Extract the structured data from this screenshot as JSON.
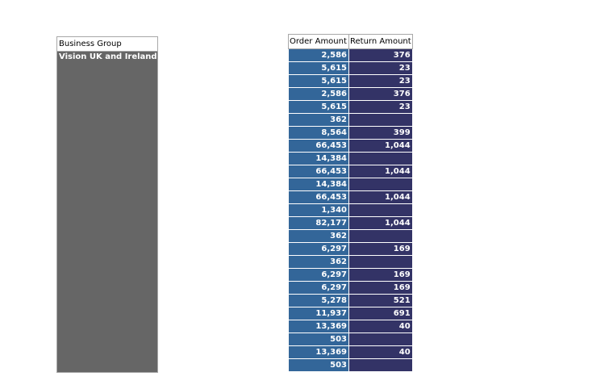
{
  "colors": {
    "group_pane": "#666666",
    "order_cell": "#336699",
    "return_cell": "#333366",
    "header_bg": "#ffffff",
    "border": "#a8a8a8"
  },
  "business_group": {
    "header": "Business Group",
    "value": "Vision UK and Ireland"
  },
  "table": {
    "headers": {
      "order_amount": "Order Amount",
      "return_amount": "Return Amount"
    },
    "rows": [
      {
        "order": "2,586",
        "return": "376"
      },
      {
        "order": "5,615",
        "return": "23"
      },
      {
        "order": "5,615",
        "return": "23"
      },
      {
        "order": "2,586",
        "return": "376"
      },
      {
        "order": "5,615",
        "return": "23"
      },
      {
        "order": "362",
        "return": ""
      },
      {
        "order": "8,564",
        "return": "399"
      },
      {
        "order": "66,453",
        "return": "1,044"
      },
      {
        "order": "14,384",
        "return": ""
      },
      {
        "order": "66,453",
        "return": "1,044"
      },
      {
        "order": "14,384",
        "return": ""
      },
      {
        "order": "66,453",
        "return": "1,044"
      },
      {
        "order": "1,340",
        "return": ""
      },
      {
        "order": "82,177",
        "return": "1,044"
      },
      {
        "order": "362",
        "return": ""
      },
      {
        "order": "6,297",
        "return": "169"
      },
      {
        "order": "362",
        "return": ""
      },
      {
        "order": "6,297",
        "return": "169"
      },
      {
        "order": "6,297",
        "return": "169"
      },
      {
        "order": "5,278",
        "return": "521"
      },
      {
        "order": "11,937",
        "return": "691"
      },
      {
        "order": "13,369",
        "return": "40"
      },
      {
        "order": "503",
        "return": ""
      },
      {
        "order": "13,369",
        "return": "40"
      },
      {
        "order": "503",
        "return": ""
      }
    ]
  }
}
